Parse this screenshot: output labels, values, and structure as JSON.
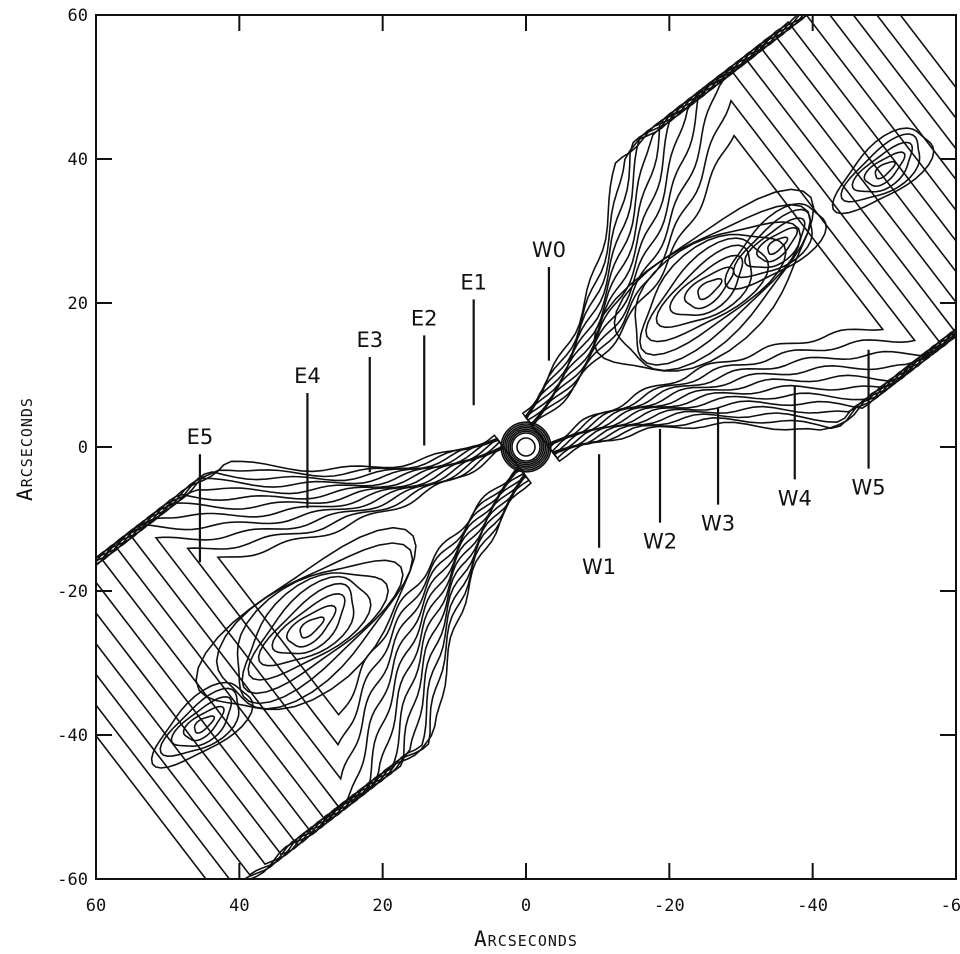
{
  "chart_data": {
    "type": "contour",
    "xlabel": "Arcseconds",
    "ylabel": "Arcseconds",
    "xlim": [
      60,
      -60
    ],
    "ylim": [
      -60,
      60
    ],
    "xticks": [
      60,
      40,
      20,
      0,
      -20,
      -40,
      -60
    ],
    "yticks": [
      60,
      40,
      20,
      0,
      -20,
      -40,
      -60
    ],
    "xtick_labels": [
      "60",
      "40",
      "20",
      "0",
      "-20",
      "-40",
      "-60"
    ],
    "ytick_labels": [
      "60",
      "40",
      "20",
      "0",
      "-20",
      "-40",
      "-60"
    ],
    "core": {
      "x": 0,
      "y": 0
    },
    "east_knots": [
      {
        "name": "E5",
        "x": 45.5,
        "y_top": -1,
        "y_bottom": -16
      },
      {
        "name": "E4",
        "x": 30.5,
        "y_top": 7.5,
        "y_bottom": -8.5
      },
      {
        "name": "E3",
        "x": 21.8,
        "y_top": 12.5,
        "y_bottom": -3.5
      },
      {
        "name": "E2",
        "x": 14.2,
        "y_top": 15.5,
        "y_bottom": 0.2
      },
      {
        "name": "E1",
        "x": 7.3,
        "y_top": 20.5,
        "y_bottom": 5.8
      },
      {
        "name": "W0",
        "x": -3.2,
        "y_top": 25,
        "y_bottom": 12
      }
    ],
    "west_knots": [
      {
        "name": "W1",
        "x": -10.2,
        "y_top": -1,
        "y_bottom": -14
      },
      {
        "name": "W2",
        "x": -18.7,
        "y_top": 2.5,
        "y_bottom": -10.5
      },
      {
        "name": "W3",
        "x": -26.8,
        "y_top": 5.5,
        "y_bottom": -8
      },
      {
        "name": "W4",
        "x": -37.5,
        "y_top": 8.5,
        "y_bottom": -4.5
      },
      {
        "name": "W5",
        "x": -47.8,
        "y_top": 13.5,
        "y_bottom": -3
      }
    ],
    "jet_features": [
      {
        "side": "west",
        "peak": {
          "x": -25.5,
          "y": 22
        },
        "secondary_peaks": [
          {
            "x": -35,
            "y": 28
          },
          {
            "x": -50,
            "y": 38.5
          }
        ]
      },
      {
        "side": "east",
        "peak": {
          "x": 30,
          "y": -25
        },
        "secondary_peaks": [
          {
            "x": 45,
            "y": -38.5
          }
        ]
      }
    ]
  }
}
